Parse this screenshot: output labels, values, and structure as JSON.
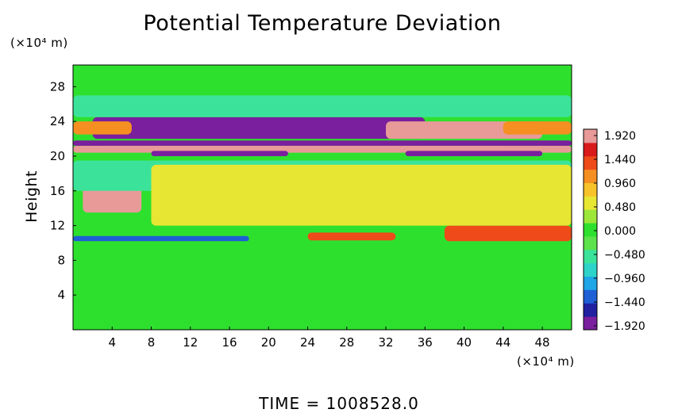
{
  "chart_data": {
    "type": "heatmap",
    "title": "Potential Temperature Deviation",
    "ylabel": "Height",
    "x_unit": "(×10⁴ m)",
    "y_unit": "(×10⁴ m)",
    "x_ticks": [
      4,
      8,
      12,
      16,
      20,
      24,
      28,
      32,
      36,
      40,
      44,
      48
    ],
    "y_ticks": [
      4,
      8,
      12,
      16,
      20,
      24,
      28
    ],
    "xlim": [
      0,
      51
    ],
    "ylim": [
      0,
      30.5
    ],
    "colorbar": {
      "labels": [
        "1.920",
        "1.440",
        "0.960",
        "0.480",
        "0.000",
        "-0.480",
        "-0.960",
        "-1.440",
        "-1.920"
      ],
      "range": [
        -2.16,
        2.16
      ],
      "colors": [
        "#7a1f9e",
        "#2020a0",
        "#1e5fd6",
        "#1ea6e6",
        "#2dd3c8",
        "#3be39a",
        "#5ce24a",
        "#2ee02e",
        "#9de63a",
        "#e7e633",
        "#f7c22a",
        "#f58f21",
        "#ee4a1a",
        "#d81a1a",
        "#e79a98"
      ]
    },
    "background_value": 0.0,
    "features": [
      {
        "feature": "strong positive band",
        "x": [
          0,
          51
        ],
        "y": [
          20.4,
          21.2
        ],
        "value": 1.92
      },
      {
        "feature": "strong negative band",
        "x": [
          0,
          51
        ],
        "y": [
          21.2,
          21.8
        ],
        "value": -1.92
      },
      {
        "feature": "negative streaks (upper band)",
        "x": [
          2,
          36
        ],
        "y": [
          22.0,
          24.5
        ],
        "value": -1.92
      },
      {
        "feature": "positive lens (upper band)",
        "x": [
          32,
          48
        ],
        "y": [
          22.0,
          24.0
        ],
        "value": 1.92
      },
      {
        "feature": "negative band (lower band)",
        "x": [
          8,
          22
        ],
        "y": [
          20.0,
          20.6
        ],
        "value": -1.92
      },
      {
        "feature": "negative band (lower band)",
        "x": [
          34,
          48
        ],
        "y": [
          20.0,
          20.6
        ],
        "value": -1.92
      },
      {
        "feature": "red layer",
        "x": [
          0,
          6
        ],
        "y": [
          22.5,
          24.0
        ],
        "value": 1.2
      },
      {
        "feature": "red layer",
        "x": [
          44,
          51
        ],
        "y": [
          22.5,
          24.0
        ],
        "value": 1.2
      },
      {
        "feature": "cyan ripples",
        "x": [
          0,
          51
        ],
        "y": [
          24.5,
          27.0
        ],
        "value": -0.6
      },
      {
        "feature": "blue line",
        "x": [
          0,
          18
        ],
        "y": [
          10.2,
          10.8
        ],
        "value": -1.3
      },
      {
        "feature": "red patches",
        "x": [
          24,
          33
        ],
        "y": [
          10.3,
          11.2
        ],
        "value": 1.4
      },
      {
        "feature": "red patches",
        "x": [
          38,
          51
        ],
        "y": [
          10.2,
          12.0
        ],
        "value": 1.4
      },
      {
        "feature": "hot spots",
        "x": [
          1,
          7
        ],
        "y": [
          13.5,
          16.8
        ],
        "value": 1.92
      },
      {
        "feature": "orange blobs",
        "x": [
          8,
          16
        ],
        "y": [
          17.5,
          19.2
        ],
        "value": 0.9
      },
      {
        "feature": "cyan patches",
        "x": [
          0,
          51
        ],
        "y": [
          16.0,
          19.5
        ],
        "value": -0.6
      },
      {
        "feature": "yellow patches",
        "x": [
          8,
          51
        ],
        "y": [
          12.0,
          19.0
        ],
        "value": 0.6
      }
    ]
  },
  "footer": {
    "time_label": "TIME = 1008528.0"
  }
}
